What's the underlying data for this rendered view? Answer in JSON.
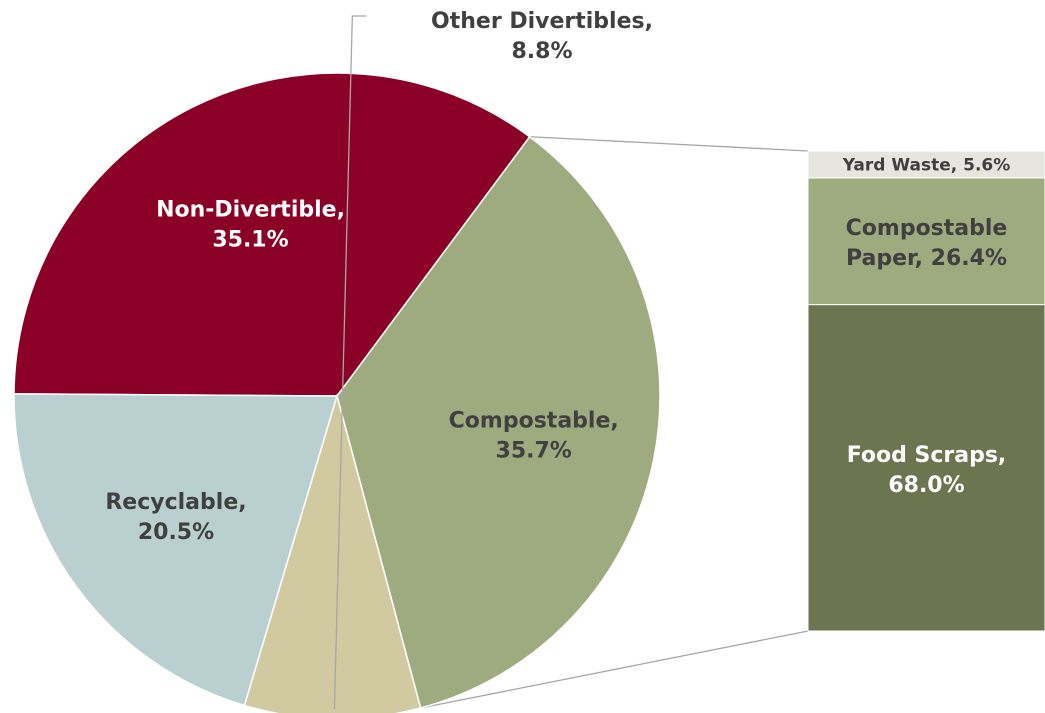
{
  "chart_data": {
    "type": "pie",
    "title": "",
    "pie": {
      "slices": [
        {
          "label": "Compostable",
          "value": 35.7,
          "display": "35.7%",
          "color": "#9eab7f",
          "text_color": "#404040"
        },
        {
          "label": "Non-Divertible",
          "value": 35.1,
          "display": "35.1%",
          "color": "#8b0027",
          "text_color": "#ffffff"
        },
        {
          "label": "Recyclable",
          "value": 20.5,
          "display": "20.5%",
          "color": "#bad0d0",
          "text_color": "#404040"
        },
        {
          "label": "Other Divertibles",
          "value": 8.8,
          "display": "8.8%",
          "color": "#d1c9a0",
          "text_color": "#404040"
        }
      ]
    },
    "breakdown_of": "Compostable",
    "bar": {
      "segments": [
        {
          "label": "Food Scraps",
          "value": 68.0,
          "display": "68.0%",
          "color": "#6b7550",
          "text_color": "#ffffff"
        },
        {
          "label": "Compostable Paper",
          "value": 26.4,
          "display": "26.4%",
          "color": "#9eab7f",
          "text_color": "#404040"
        },
        {
          "label": "Yard Waste",
          "value": 5.6,
          "display": "5.6%",
          "color": "#e6e6df",
          "text_color": "#404040"
        }
      ]
    },
    "connector_color": "#a6a6a6"
  }
}
